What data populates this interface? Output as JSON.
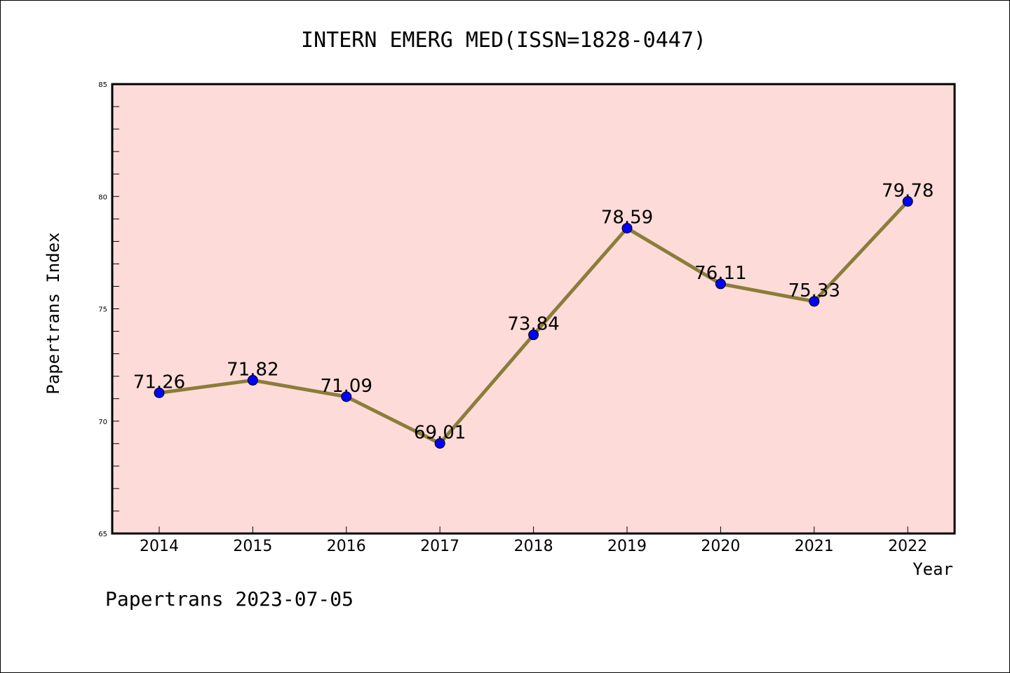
{
  "footer_text": "Papertrans 2023-07-05",
  "chart_data": {
    "type": "line",
    "title": "INTERN EMERG MED(ISSN=1828-0447)",
    "xlabel": "Year",
    "ylabel": "Papertrans Index",
    "x": [
      "2014",
      "2015",
      "2016",
      "2017",
      "2018",
      "2019",
      "2020",
      "2021",
      "2022"
    ],
    "values": [
      71.26,
      71.82,
      71.09,
      69.01,
      73.84,
      78.59,
      76.11,
      75.33,
      79.78
    ],
    "data_labels": [
      "71.26",
      "71.82",
      "71.09",
      "69.01",
      "73.84",
      "78.59",
      "76.11",
      "75.33",
      "79.78"
    ],
    "ylim": [
      65,
      85
    ],
    "y_ticks": [
      65,
      70,
      75,
      80,
      85
    ],
    "grid": false,
    "legend": "none",
    "colors": {
      "plot_background": "#fddbd8",
      "line": "#8b7d3a",
      "marker": "#0000ff"
    }
  }
}
